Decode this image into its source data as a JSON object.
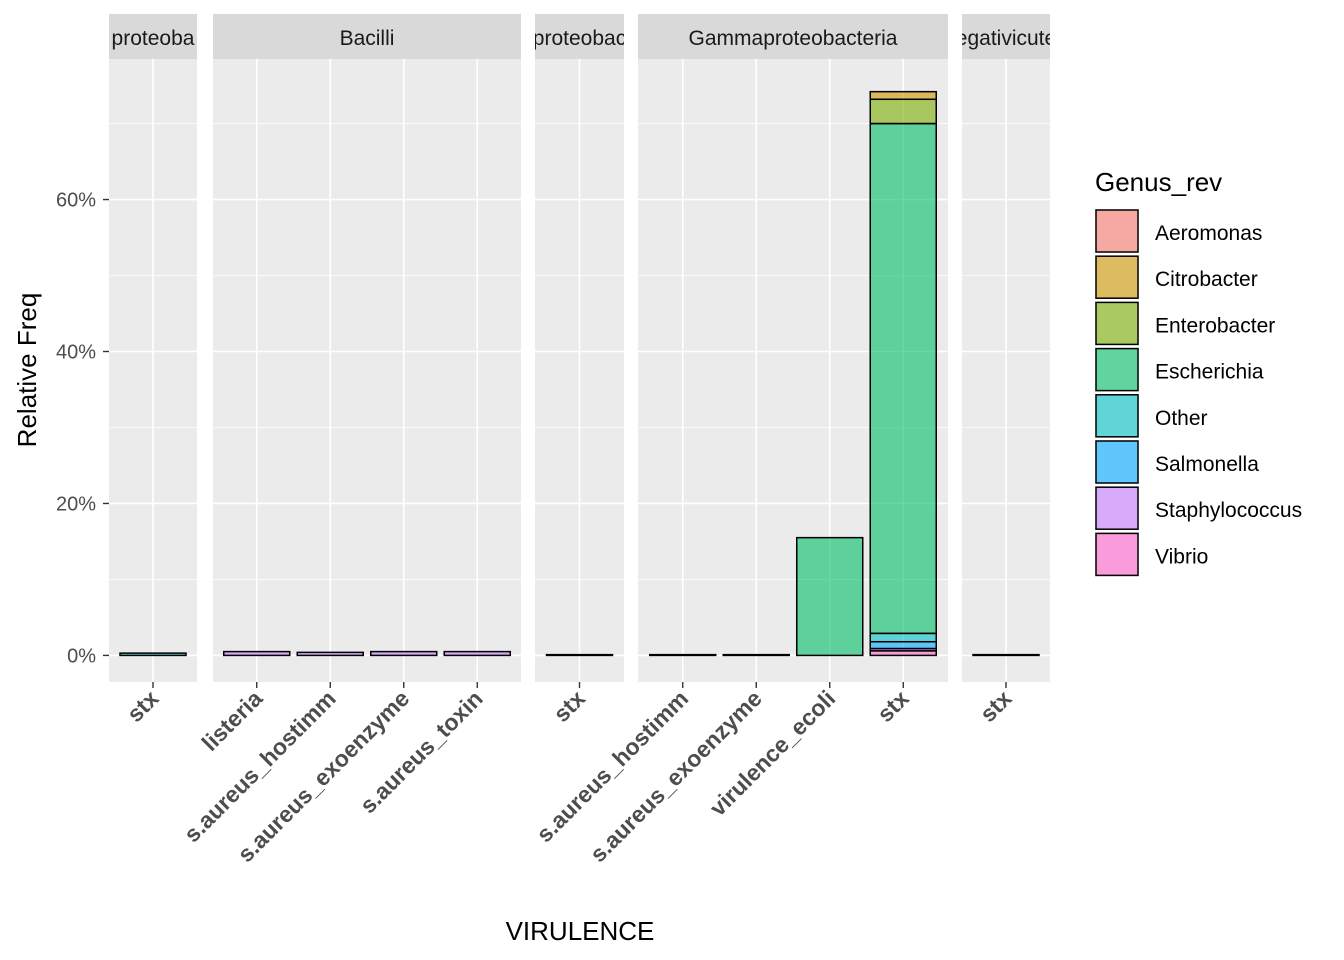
{
  "chart_data": {
    "type": "bar",
    "stacked": true,
    "facet_variable": "class",
    "panels": [
      {
        "strip": "Alphaproteobacteria",
        "strip_visible": "proteoba",
        "categories": [
          "stx"
        ]
      },
      {
        "strip": "Bacilli",
        "strip_visible": "Bacilli",
        "categories": [
          "listeria",
          "s.aureus_hostimm",
          "s.aureus_exoenzyme",
          "s.aureus_toxin"
        ]
      },
      {
        "strip": "Betaproteobacteria",
        "strip_visible": "proteobac",
        "categories": [
          "stx"
        ]
      },
      {
        "strip": "Gammaproteobacteria",
        "strip_visible": "Gammaproteobacteria",
        "categories": [
          "s.aureus_hostimm",
          "s.aureus_exoenzyme",
          "virulence_ecoli",
          "stx"
        ]
      },
      {
        "strip": "Negativicutes",
        "strip_visible": "egativicute",
        "categories": [
          "stx"
        ]
      }
    ],
    "bars": [
      {
        "panel": 0,
        "category": "stx",
        "segments": [
          {
            "genus": "Other",
            "value": 0.3
          }
        ]
      },
      {
        "panel": 1,
        "category": "listeria",
        "segments": [
          {
            "genus": "Staphylococcus",
            "value": 0.5
          }
        ]
      },
      {
        "panel": 1,
        "category": "s.aureus_hostimm",
        "segments": [
          {
            "genus": "Staphylococcus",
            "value": 0.4
          }
        ]
      },
      {
        "panel": 1,
        "category": "s.aureus_exoenzyme",
        "segments": [
          {
            "genus": "Staphylococcus",
            "value": 0.5
          }
        ]
      },
      {
        "panel": 1,
        "category": "s.aureus_toxin",
        "segments": [
          {
            "genus": "Staphylococcus",
            "value": 0.5
          }
        ]
      },
      {
        "panel": 2,
        "category": "stx",
        "segments": [
          {
            "genus": "Other",
            "value": 0.1
          }
        ]
      },
      {
        "panel": 3,
        "category": "s.aureus_hostimm",
        "segments": [
          {
            "genus": "Other",
            "value": 0.1
          }
        ]
      },
      {
        "panel": 3,
        "category": "s.aureus_exoenzyme",
        "segments": [
          {
            "genus": "Other",
            "value": 0.1
          }
        ]
      },
      {
        "panel": 3,
        "category": "virulence_ecoli",
        "segments": [
          {
            "genus": "Escherichia",
            "value": 15.5
          }
        ]
      },
      {
        "panel": 3,
        "category": "stx",
        "segments": [
          {
            "genus": "Vibrio",
            "value": 0.6
          },
          {
            "genus": "Staphylococcus",
            "value": 0.3
          },
          {
            "genus": "Salmonella",
            "value": 0.9
          },
          {
            "genus": "Other",
            "value": 1.1
          },
          {
            "genus": "Escherichia",
            "value": 67.1
          },
          {
            "genus": "Enterobacter",
            "value": 3.2
          },
          {
            "genus": "Citrobacter",
            "value": 1.0
          }
        ]
      },
      {
        "panel": 4,
        "category": "stx",
        "segments": [
          {
            "genus": "Other",
            "value": 0.1
          }
        ]
      }
    ],
    "ylim": [
      -3.5,
      78.5
    ],
    "yticks": [
      0,
      20,
      40,
      60
    ],
    "ytick_labels": [
      "0%",
      "20%",
      "40%",
      "60%"
    ],
    "xlabel": "VIRULENCE",
    "ylabel": "Relative Freq",
    "legend": {
      "title": "Genus_rev",
      "position": "right",
      "entries": [
        {
          "label": "Aeromonas",
          "color": "#F8766D"
        },
        {
          "label": "Citrobacter",
          "color": "#CD9600"
        },
        {
          "label": "Enterobacter",
          "color": "#7CAE00"
        },
        {
          "label": "Escherichia",
          "color": "#00BE67"
        },
        {
          "label": "Other",
          "color": "#00BFC4"
        },
        {
          "label": "Salmonella",
          "color": "#00A9FF"
        },
        {
          "label": "Staphylococcus",
          "color": "#C77CFF"
        },
        {
          "label": "Vibrio",
          "color": "#FF61CC"
        }
      ]
    },
    "fill_alpha": 0.6,
    "grid": true,
    "panel_background": "#EBEBEB",
    "strip_background": "#D9D9D9"
  }
}
